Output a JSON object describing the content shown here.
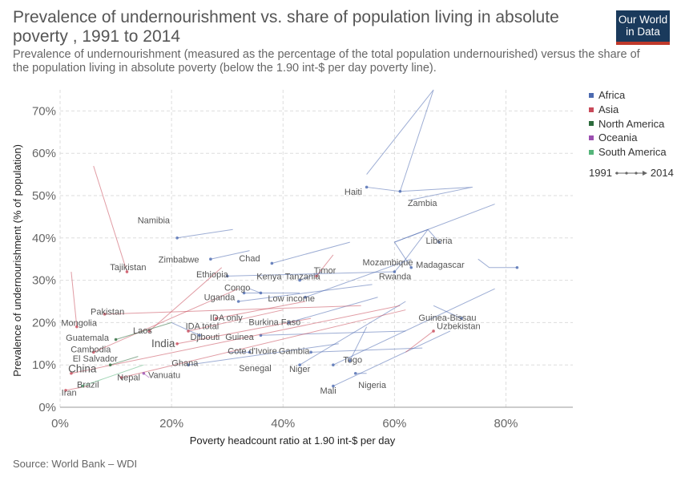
{
  "header": {
    "title": "Prevalence of undernourishment vs. share of population living in absolute poverty , 1991 to 2014",
    "subtitle": "Prevalence of undernourishment (measured as the percentage of the total population undernourished) versus the share of the population living in absolute poverty (below the 1.90 int-$ per day poverty line).",
    "logo_line1": "Our World",
    "logo_line2": "in Data"
  },
  "footer": {
    "source": "Source: World Bank – WDI"
  },
  "colors": {
    "Africa": "#4c6ab0",
    "Asia": "#c84a5a",
    "North America": "#2d6b3c",
    "Oceania": "#9b4fb0",
    "South America": "#55b57a",
    "grid": "#dddddd"
  },
  "legend": {
    "items": [
      "Africa",
      "Asia",
      "North America",
      "Oceania",
      "South America"
    ],
    "time_start": "1991",
    "time_end": "2014"
  },
  "chart_data": {
    "type": "scatter",
    "xlabel": "Poverty headcount ratio at 1.90 int-$ per day",
    "ylabel": "Prevalence of undernourishment (% of population)",
    "xlim": [
      0,
      92
    ],
    "ylim": [
      0,
      75
    ],
    "xticks": [
      0,
      20,
      40,
      60,
      80
    ],
    "yticks": [
      0,
      10,
      20,
      30,
      40,
      50,
      60,
      70
    ],
    "x_tick_labels": [
      "0%",
      "20%",
      "40%",
      "60%",
      "80%"
    ],
    "y_tick_labels": [
      "0%",
      "10%",
      "20%",
      "30%",
      "40%",
      "50%",
      "60%",
      "70%"
    ],
    "grid": true,
    "legend_position": "right",
    "series": [
      {
        "name": "Haiti",
        "group": "Africa",
        "points": [
          [
            55,
            55
          ],
          [
            67,
            75
          ],
          [
            61,
            51
          ],
          [
            55,
            52
          ]
        ]
      },
      {
        "name": "Zambia",
        "group": "Africa",
        "points": [
          [
            63,
            49
          ],
          [
            74,
            52
          ],
          [
            61,
            51
          ]
        ]
      },
      {
        "name": "Liberia",
        "group": "Africa",
        "points": [
          [
            60,
            39
          ],
          [
            66,
            42
          ],
          [
            68,
            39
          ]
        ]
      },
      {
        "name": "Madagascar",
        "group": "Africa",
        "points": [
          [
            75,
            35
          ],
          [
            77,
            33
          ],
          [
            82,
            33
          ]
        ]
      },
      {
        "name": "Mozambique",
        "group": "Africa",
        "points": [
          [
            78,
            48
          ],
          [
            60,
            39
          ],
          [
            63,
            33
          ]
        ]
      },
      {
        "name": "Rwanda",
        "group": "Africa",
        "points": [
          [
            66,
            42
          ],
          [
            62,
            35
          ],
          [
            60,
            32
          ]
        ]
      },
      {
        "name": "Chad",
        "group": "Africa",
        "points": [
          [
            52,
            39
          ],
          [
            38,
            34
          ]
        ]
      },
      {
        "name": "Kenya",
        "group": "Africa",
        "points": [
          [
            34,
            28
          ],
          [
            36,
            27
          ]
        ]
      },
      {
        "name": "Tanzania",
        "group": "Africa",
        "points": [
          [
            47,
            32
          ],
          [
            43,
            30
          ]
        ]
      },
      {
        "name": "Ethiopia",
        "group": "Africa",
        "points": [
          [
            60,
            32
          ],
          [
            30,
            31
          ]
        ]
      },
      {
        "name": "Congo",
        "group": "Africa",
        "points": [
          [
            43,
            27
          ],
          [
            33,
            27
          ]
        ]
      },
      {
        "name": "Uganda",
        "group": "Africa",
        "points": [
          [
            56,
            29
          ],
          [
            32,
            25
          ]
        ]
      },
      {
        "name": "Guinea-Bissau",
        "group": "Africa",
        "points": [
          [
            67,
            24
          ],
          [
            72,
            21
          ]
        ]
      },
      {
        "name": "Burkina Faso",
        "group": "Africa",
        "points": [
          [
            57,
            26
          ],
          [
            41,
            20
          ]
        ]
      },
      {
        "name": "Guinea",
        "group": "Africa",
        "points": [
          [
            62,
            18
          ],
          [
            36,
            17
          ]
        ]
      },
      {
        "name": "Djibouti",
        "group": "Africa",
        "points": [
          [
            20,
            20
          ],
          [
            25,
            17
          ]
        ]
      },
      {
        "name": "Cote d'Ivoire",
        "group": "Africa",
        "points": [
          [
            30,
            13
          ],
          [
            34,
            13
          ]
        ]
      },
      {
        "name": "Gambia",
        "group": "Africa",
        "points": [
          [
            65,
            14
          ],
          [
            45,
            13
          ]
        ]
      },
      {
        "name": "Togo",
        "group": "Africa",
        "points": [
          [
            55,
            19
          ],
          [
            52,
            11
          ]
        ]
      },
      {
        "name": "Niger",
        "group": "Africa",
        "points": [
          [
            78,
            28
          ],
          [
            49,
            10
          ]
        ]
      },
      {
        "name": "Nigeria",
        "group": "Africa",
        "points": [
          [
            55,
            8
          ],
          [
            53,
            8
          ]
        ]
      },
      {
        "name": "Mali",
        "group": "Africa",
        "points": [
          [
            70,
            18
          ],
          [
            49,
            5
          ]
        ]
      },
      {
        "name": "Senegal",
        "group": "Africa",
        "points": [
          [
            62,
            25
          ],
          [
            43,
            10
          ]
        ]
      },
      {
        "name": "Ghana",
        "group": "Africa",
        "points": [
          [
            50,
            15
          ],
          [
            23,
            10
          ]
        ]
      },
      {
        "name": "Low income",
        "group": "Africa",
        "points": [
          [
            63,
            35
          ],
          [
            44,
            26
          ]
        ]
      },
      {
        "name": "Zimbabwe",
        "group": "Africa",
        "points": [
          [
            34,
            37
          ],
          [
            27,
            35
          ]
        ]
      },
      {
        "name": "Namibia",
        "group": "Africa",
        "points": [
          [
            31,
            42
          ],
          [
            21,
            40
          ]
        ]
      },
      {
        "name": "Timor",
        "group": "Asia",
        "points": [
          [
            49,
            36
          ],
          [
            46,
            31
          ]
        ]
      },
      {
        "name": "Uzbekistan",
        "group": "Asia",
        "points": [
          [
            62,
            13
          ],
          [
            67,
            18
          ]
        ]
      },
      {
        "name": "IDA only",
        "group": "Asia",
        "points": [
          [
            44,
            25
          ],
          [
            28,
            21
          ]
        ]
      },
      {
        "name": "IDA total",
        "group": "Asia",
        "points": [
          [
            40,
            23
          ],
          [
            23,
            18
          ]
        ]
      },
      {
        "name": "India",
        "group": "Asia",
        "points": [
          [
            45,
            21
          ],
          [
            21,
            15
          ]
        ]
      },
      {
        "name": "Laos",
        "group": "Asia",
        "points": [
          [
            29,
            33
          ],
          [
            16,
            18
          ]
        ]
      },
      {
        "name": "Tajikistan",
        "group": "Asia",
        "points": [
          [
            6,
            57
          ],
          [
            12,
            32
          ]
        ]
      },
      {
        "name": "Pakistan",
        "group": "Asia",
        "points": [
          [
            54,
            24
          ],
          [
            8,
            22
          ]
        ]
      },
      {
        "name": "Mongolia",
        "group": "Asia",
        "points": [
          [
            2,
            32
          ],
          [
            3,
            19
          ]
        ]
      },
      {
        "name": "Cambodia",
        "group": "Asia",
        "points": [
          [
            32,
            28
          ],
          [
            6,
            13
          ]
        ]
      },
      {
        "name": "China",
        "group": "Asia",
        "points": [
          [
            61,
            24
          ],
          [
            2,
            8
          ]
        ]
      },
      {
        "name": "Nepal",
        "group": "Asia",
        "points": [
          [
            62,
            23
          ],
          [
            11,
            7
          ]
        ]
      },
      {
        "name": "Iran",
        "group": "Asia",
        "points": [
          [
            5,
            5
          ],
          [
            1,
            4
          ]
        ]
      },
      {
        "name": "Vanuatu",
        "group": "Oceania",
        "points": [
          [
            16,
            7
          ],
          [
            15,
            8
          ]
        ]
      },
      {
        "name": "Guatemala",
        "group": "North America",
        "points": [
          [
            20,
            20
          ],
          [
            10,
            16
          ]
        ]
      },
      {
        "name": "El Salvador",
        "group": "North America",
        "points": [
          [
            14,
            12
          ],
          [
            9,
            10
          ]
        ]
      },
      {
        "name": "Brazil",
        "group": "South America",
        "points": [
          [
            15,
            10
          ],
          [
            4,
            5
          ]
        ]
      }
    ],
    "labels": [
      {
        "text": "Haiti",
        "x": 52.6,
        "y": 50.2
      },
      {
        "text": "Zambia",
        "x": 65,
        "y": 47.5
      },
      {
        "text": "Namibia",
        "x": 16.8,
        "y": 43.5
      },
      {
        "text": "Liberia",
        "x": 68,
        "y": 38.6
      },
      {
        "text": "Zimbabwe",
        "x": 21.3,
        "y": 34.2
      },
      {
        "text": "Chad",
        "x": 34,
        "y": 34.5
      },
      {
        "text": "Mozambique",
        "x": 58.8,
        "y": 33.5
      },
      {
        "text": "Madagascar",
        "x": 68.2,
        "y": 33
      },
      {
        "text": "Tajikistan",
        "x": 12.2,
        "y": 32.4
      },
      {
        "text": "Timor",
        "x": 47.5,
        "y": 31.6
      },
      {
        "text": "Ethiopia",
        "x": 27.3,
        "y": 30.7
      },
      {
        "text": "Kenya",
        "x": 37.5,
        "y": 30.2
      },
      {
        "text": "Tanzania",
        "x": 43.5,
        "y": 30.2
      },
      {
        "text": "Rwanda",
        "x": 60.1,
        "y": 30.2
      },
      {
        "text": "Congo",
        "x": 31.8,
        "y": 27.6
      },
      {
        "text": "Uganda",
        "x": 28.6,
        "y": 25.3
      },
      {
        "text": "Low income",
        "x": 41.5,
        "y": 25
      },
      {
        "text": "Pakistan",
        "x": 8.5,
        "y": 21.9
      },
      {
        "text": "IDA only",
        "x": 29.8,
        "y": 20.5
      },
      {
        "text": "Mongolia",
        "x": 3.4,
        "y": 19.2
      },
      {
        "text": "Guinea-Bissau",
        "x": 69.5,
        "y": 20.5
      },
      {
        "text": "Burkina Faso",
        "x": 38.5,
        "y": 19.4
      },
      {
        "text": "IDA total",
        "x": 25.5,
        "y": 18.5
      },
      {
        "text": "Uzbekistan",
        "x": 71.5,
        "y": 18.5
      },
      {
        "text": "Laos",
        "x": 14.8,
        "y": 17.4
      },
      {
        "text": "Guatemala",
        "x": 4.9,
        "y": 15.7
      },
      {
        "text": "Djibouti",
        "x": 26,
        "y": 15.9
      },
      {
        "text": "Guinea",
        "x": 32.2,
        "y": 15.9
      },
      {
        "text": "India",
        "x": 18.5,
        "y": 14.2,
        "big": true
      },
      {
        "text": "Cambodia",
        "x": 5.5,
        "y": 13
      },
      {
        "text": "Cote d'Ivoire",
        "x": 34.5,
        "y": 12.6
      },
      {
        "text": "Gambia",
        "x": 42,
        "y": 12.6
      },
      {
        "text": "El Salvador",
        "x": 6.3,
        "y": 10.8
      },
      {
        "text": "Ghana",
        "x": 22.4,
        "y": 9.8
      },
      {
        "text": "Togo",
        "x": 52.5,
        "y": 10.5
      },
      {
        "text": "Senegal",
        "x": 35,
        "y": 8.5
      },
      {
        "text": "Niger",
        "x": 43,
        "y": 8.3
      },
      {
        "text": "China",
        "x": 4,
        "y": 8.2,
        "big": true
      },
      {
        "text": "Vanuatu",
        "x": 18.7,
        "y": 6.9
      },
      {
        "text": "Nepal",
        "x": 12.3,
        "y": 6.3
      },
      {
        "text": "Nigeria",
        "x": 56,
        "y": 4.5
      },
      {
        "text": "Brazil",
        "x": 5,
        "y": 4.6
      },
      {
        "text": "Mali",
        "x": 48.1,
        "y": 3.2
      },
      {
        "text": "Iran",
        "x": 1.6,
        "y": 2.7
      }
    ]
  }
}
